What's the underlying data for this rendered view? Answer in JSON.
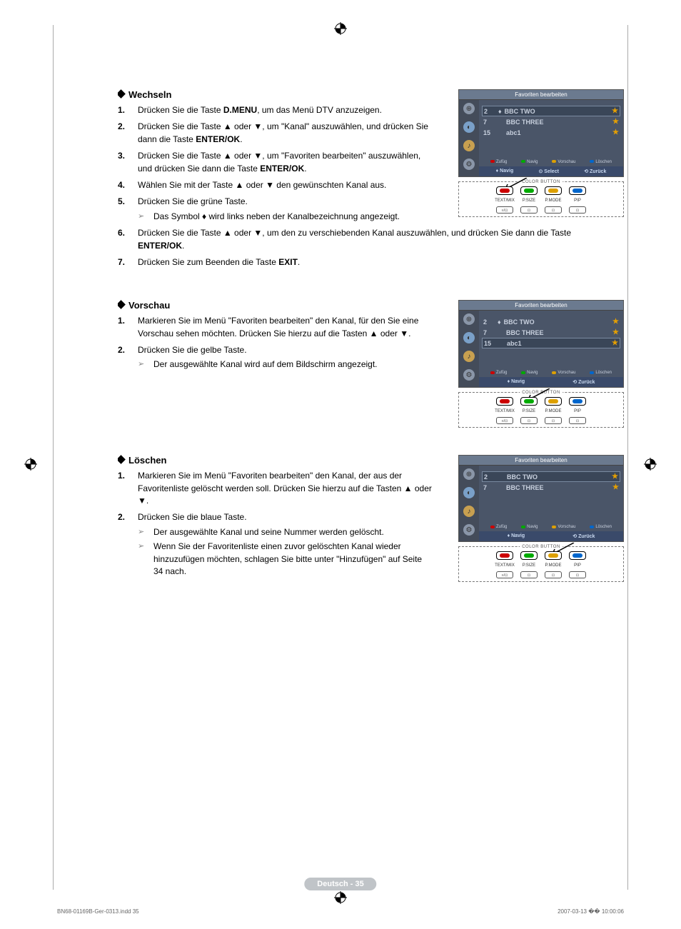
{
  "sections": {
    "wechseln": {
      "title": "Wechseln",
      "steps": [
        "Drücken Sie die Taste <b>D.MENU</b>, um das Menü DTV anzuzeigen.",
        "Drücken Sie die Taste ▲ oder ▼, um \"Kanal\" auszuwählen, und drücken Sie dann die Taste <b>ENTER/OK</b>.",
        "Drücken Sie die Taste ▲ oder ▼, um \"Favoriten bearbeiten\" auszuwählen, und drücken Sie dann die Taste <b>ENTER/OK</b>.",
        "Wählen Sie mit der Taste ▲ oder ▼ den gewünschten Kanal aus.",
        "Drücken Sie die grüne Taste.",
        "Drücken Sie die Taste ▲ oder ▼, um den zu verschiebenden Kanal auszuwählen, und drücken Sie dann die Taste <b>ENTER/OK</b>.",
        "Drücken Sie zum Beenden die Taste <b>EXIT</b>."
      ],
      "note5": "Das Symbol ♦ wird links neben der Kanalbezeichnung angezeigt."
    },
    "vorschau": {
      "title": "Vorschau",
      "steps": [
        "Markieren Sie im Menü \"Favoriten bearbeiten\" den Kanal, für den Sie eine Vorschau sehen möchten. Drücken Sie hierzu auf die Tasten ▲ oder ▼.",
        "Drücken Sie die gelbe Taste."
      ],
      "note2": "Der ausgewählte Kanal wird auf dem Bildschirm angezeigt."
    },
    "loeschen": {
      "title": "Löschen",
      "steps": [
        "Markieren Sie im Menü \"Favoriten bearbeiten\" den Kanal, der aus der Favoritenliste gelöscht werden soll. Drücken Sie hierzu auf die Tasten ▲ oder ▼.",
        "Drücken Sie die blaue Taste."
      ],
      "note2a": "Der ausgewählte Kanal und seine Nummer werden gelöscht.",
      "note2b": "Wenn Sie der Favoritenliste einen zuvor gelöschten Kanal wieder hinzuzufügen möchten, schlagen Sie bitte unter \"Hinzufügen\" auf Seite 34 nach."
    }
  },
  "osd": {
    "title": "Favoriten bearbeiten",
    "channels1": [
      {
        "num": "2",
        "name": "BBC TWO",
        "sel": true,
        "move": true,
        "star": true
      },
      {
        "num": "7",
        "name": "BBC THREE",
        "sel": false,
        "star": true
      },
      {
        "num": "15",
        "name": "abc1",
        "sel": false,
        "star": true
      }
    ],
    "channels2": [
      {
        "num": "2",
        "name": "BBC TWO",
        "sel": false,
        "move": true,
        "star": true
      },
      {
        "num": "7",
        "name": "BBC THREE",
        "sel": false,
        "star": true
      },
      {
        "num": "15",
        "name": "abc1",
        "sel": true,
        "star": true
      }
    ],
    "channels3": [
      {
        "num": "2",
        "name": "BBC TWO",
        "sel": true,
        "star": true
      },
      {
        "num": "7",
        "name": "BBC THREE",
        "sel": false,
        "star": true
      }
    ],
    "legend": {
      "red": "Zufüg",
      "green": "Navig",
      "yellow": "Vorschau",
      "blue": "Löschen"
    },
    "foot1": [
      "Navig",
      "Select",
      "Zurück"
    ],
    "foot2": [
      "Navig",
      "Zurück"
    ],
    "colors": {
      "red": "#c00000",
      "green": "#00a000",
      "yellow": "#dda000",
      "blue": "#0066cc",
      "osd_bg": "#4a5568",
      "osd_title_bg": "#6b7a8f",
      "star": "#e6a000"
    }
  },
  "remote": {
    "label": "COLOR BUTTON",
    "buttons_top": [
      "",
      "",
      "",
      ""
    ],
    "buttons_bottom_labels": [
      "TEXT/MIX",
      "P.SIZE",
      "P.MODE",
      "PIP"
    ],
    "arrow_targets": {
      "sec1": "green",
      "sec2": "yellow",
      "sec3": "blue"
    }
  },
  "page_footer": "Deutsch - 35",
  "print_left": "BN68-01169B-Ger-0313.indd   35",
  "print_right": "2007-03-13   �� 10:00:06"
}
